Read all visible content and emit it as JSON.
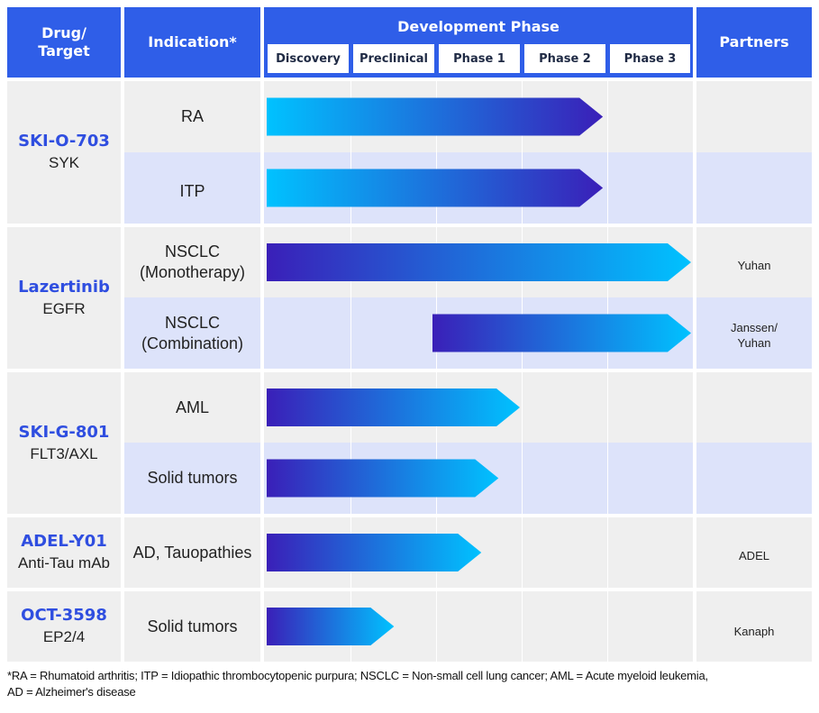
{
  "header": {
    "drug_target": "Drug/\nTarget",
    "indication": "Indication*",
    "development_phase": "Development Phase",
    "partners": "Partners"
  },
  "chart_data": {
    "type": "bar",
    "title": "Development Phase",
    "phases": [
      "Discovery",
      "Preclinical",
      "Phase 1",
      "Phase 2",
      "Phase 3"
    ],
    "drugs": [
      {
        "name": "SKI-O-703",
        "target": "SYK",
        "indications": [
          {
            "indication": "RA",
            "start_phase": 0,
            "end_progress": 3.97,
            "partner": "",
            "gradient": "light-to-dark"
          },
          {
            "indication": "ITP",
            "start_phase": 0,
            "end_progress": 3.97,
            "partner": "",
            "gradient": "light-to-dark"
          }
        ]
      },
      {
        "name": "Lazertinib",
        "target": "EGFR",
        "indications": [
          {
            "indication": "NSCLC\n(Monotherapy)",
            "start_phase": 0,
            "end_progress": 5.0,
            "partner": "Yuhan",
            "gradient": "dark-to-light"
          },
          {
            "indication": "NSCLC\n(Combination)",
            "start_phase": 2,
            "end_progress": 5.0,
            "partner": "Janssen/\nYuhan",
            "gradient": "dark-to-light"
          }
        ]
      },
      {
        "name": "SKI-G-801",
        "target": "FLT3/AXL",
        "indications": [
          {
            "indication": "AML",
            "start_phase": 0,
            "end_progress": 3.0,
            "partner": "",
            "gradient": "dark-to-light"
          },
          {
            "indication": "Solid tumors",
            "start_phase": 0,
            "end_progress": 2.75,
            "partner": "",
            "gradient": "dark-to-light"
          }
        ]
      },
      {
        "name": "ADEL-Y01",
        "target": "Anti-Tau mAb",
        "indications": [
          {
            "indication": "AD, Tauopathies",
            "start_phase": 0,
            "end_progress": 2.55,
            "partner": "ADEL",
            "gradient": "dark-to-light"
          }
        ]
      },
      {
        "name": "OCT-3598",
        "target": "EP2/4",
        "indications": [
          {
            "indication": "Solid tumors",
            "start_phase": 0,
            "end_progress": 1.53,
            "partner": "Kanaph",
            "gradient": "dark-to-light"
          }
        ]
      }
    ]
  },
  "colors": {
    "header_blue": "#2f5ee8",
    "row_gray": "#efefef",
    "row_lavender": "#dde3fa",
    "drug_name_blue": "#2f4ee0",
    "bar_dark": "#3a1fb8",
    "bar_light": "#00c2ff"
  },
  "footnote": "*RA = Rhumatoid arthritis; ITP = Idiopathic thrombocytopenic purpura; NSCLC = Non-small cell lung cancer; AML = Acute myeloid leukemia,\n AD = Alzheimer's disease"
}
